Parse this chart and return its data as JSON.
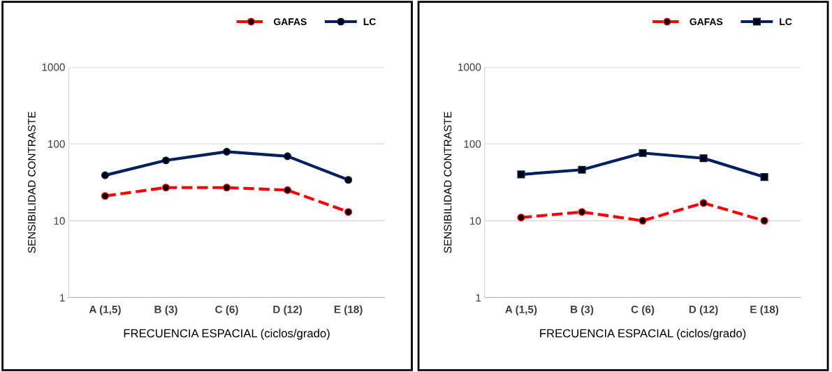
{
  "chart_data": [
    {
      "type": "line",
      "categories": [
        "A (1,5)",
        "B (3)",
        "C (6)",
        "D (12)",
        "E (18)"
      ],
      "xlabel": "FRECUENCIA ESPACIAL (ciclos/grado)",
      "ylabel": "SENSIBILIDAD CONTRASTE",
      "log": true,
      "ylim": [
        1,
        1000
      ],
      "yticks": [
        1,
        10,
        100,
        1000
      ],
      "grid": "y",
      "legend": "top right",
      "series": [
        {
          "name": "GAFAS",
          "color": "#ff0000",
          "line_style": "dashed",
          "marker": "circle",
          "values": [
            21,
            27,
            27,
            25,
            13
          ]
        },
        {
          "name": "LC",
          "color": "#002060",
          "line_style": "solid",
          "marker": "circle",
          "values": [
            39,
            61,
            79,
            69,
            34
          ]
        }
      ]
    },
    {
      "type": "line",
      "categories": [
        "A (1,5)",
        "B (3)",
        "C (6)",
        "D (12)",
        "E (18)"
      ],
      "xlabel": "FRECUENCIA ESPACIAL (ciclos/grado)",
      "ylabel": "SENSIBILIDAD CONTRASTE",
      "log": true,
      "ylim": [
        1,
        1000
      ],
      "yticks": [
        1,
        10,
        100,
        1000
      ],
      "grid": "y",
      "legend": "top right",
      "series": [
        {
          "name": "GAFAS",
          "color": "#ff0000",
          "line_style": "dashed",
          "marker": "circle",
          "values": [
            11,
            13,
            10,
            17,
            10
          ]
        },
        {
          "name": "LC",
          "color": "#002060",
          "line_style": "solid",
          "marker": "square",
          "values": [
            40,
            46,
            76,
            65,
            37
          ]
        }
      ]
    }
  ]
}
